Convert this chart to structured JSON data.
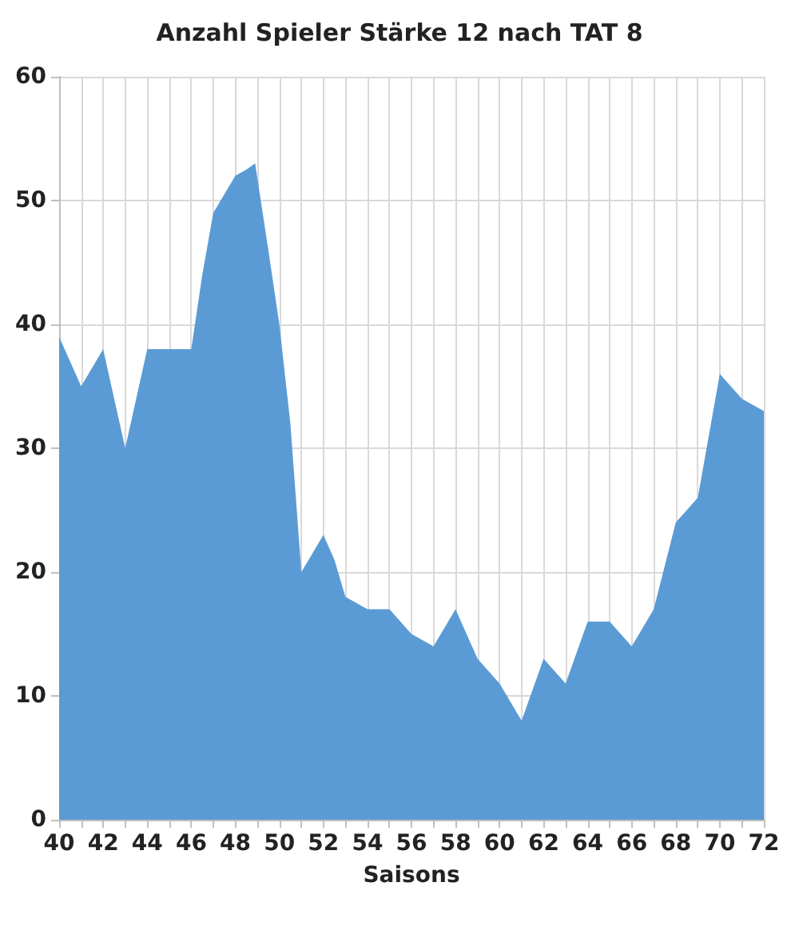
{
  "chart_data": {
    "type": "area",
    "title": "Anzahl Spieler Stärke 12 nach TAT 8",
    "xlabel": "Saisons",
    "x": [
      40,
      40.5,
      41,
      41.5,
      42,
      42.5,
      43,
      43.5,
      44,
      46,
      46.5,
      47,
      47.5,
      48,
      48.5,
      48.9,
      49.5,
      50,
      50.5,
      51,
      51.5,
      52,
      52.5,
      53,
      53.5,
      54,
      55,
      55.5,
      56,
      56.5,
      57,
      57.5,
      58,
      58.5,
      59,
      59.5,
      60,
      60.5,
      61,
      61.5,
      62,
      62.5,
      63,
      63.5,
      64,
      65,
      65.5,
      66,
      66.5,
      67,
      67.5,
      68,
      68.5,
      69,
      69.5,
      70,
      70.5,
      71,
      71.5,
      72
    ],
    "series": [
      {
        "color": "#5b9bd5",
        "values": [
          39,
          37,
          35,
          36.5,
          38,
          34,
          30,
          34,
          38,
          38,
          44,
          49,
          50.5,
          52,
          52.5,
          53,
          46,
          40,
          32,
          20,
          21.5,
          23,
          21,
          18,
          17.5,
          17,
          17,
          16,
          15,
          14.5,
          14,
          15.5,
          17,
          15,
          13,
          12,
          11,
          9.5,
          8,
          10.5,
          13,
          12,
          11,
          13.5,
          16,
          16,
          15,
          14,
          15.5,
          17,
          20.5,
          24,
          25,
          26,
          31,
          36,
          35,
          34,
          33.5,
          33
        ]
      }
    ],
    "xlim": [
      40,
      72
    ],
    "xticks": [
      40,
      {
        "value": 41,
        "label": null
      },
      42,
      {
        "value": 43,
        "label": null
      },
      44,
      {
        "value": 45,
        "label": null
      },
      46,
      {
        "value": 47,
        "label": null
      },
      48,
      {
        "value": 49,
        "label": null
      },
      50,
      {
        "value": 51,
        "label": null
      },
      52,
      {
        "value": 53,
        "label": null
      },
      54,
      {
        "value": 55,
        "label": null
      },
      56,
      {
        "value": 57,
        "label": null
      },
      58,
      {
        "value": 59,
        "label": null
      },
      60,
      {
        "value": 61,
        "label": null
      },
      62,
      {
        "value": 63,
        "label": null
      },
      64,
      {
        "value": 65,
        "label": null
      },
      66,
      {
        "value": 67,
        "label": null
      },
      68,
      {
        "value": 69,
        "label": null
      },
      70,
      {
        "value": 71,
        "label": null
      },
      72
    ],
    "ylim": [
      0,
      60
    ],
    "yticks": [
      0,
      10,
      20,
      30,
      40,
      50,
      60
    ],
    "grid": true
  }
}
